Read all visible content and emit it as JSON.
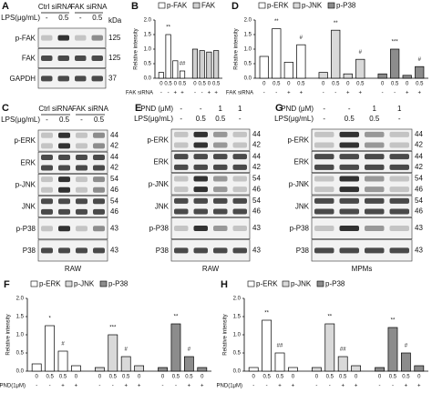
{
  "chart_data": [
    {
      "type": "bar",
      "label": "B",
      "ylabel": "Relative intensity",
      "ylim": [
        0,
        2
      ],
      "yticks": [
        {
          "value": 0,
          "label": "0.0"
        },
        0.5,
        {
          "value": 1,
          "label": "1.0"
        },
        1.5,
        {
          "value": 2,
          "label": "2.0"
        }
      ],
      "condition_labels": [
        "0",
        "0.5",
        "0",
        "0.5"
      ],
      "treatment": {
        "label": "FAK siRNA",
        "values": [
          "-",
          "-",
          "+",
          "+"
        ]
      },
      "series": [
        {
          "name": "p-FAK",
          "color": "#ffffff",
          "values": [
            0.2,
            1.5,
            0.6,
            0.25
          ],
          "annotations": [
            null,
            "**",
            null,
            "##"
          ]
        },
        {
          "name": "FAK",
          "color": "#d0d0d0",
          "values": [
            1.0,
            0.95,
            0.9,
            0.95
          ],
          "annotations": [
            null,
            null,
            null,
            null
          ]
        }
      ]
    },
    {
      "type": "bar",
      "label": "D",
      "ylabel": "Relative intensity",
      "ylim": [
        0,
        2
      ],
      "yticks": [
        {
          "value": 0,
          "label": "0.0"
        },
        0.5,
        {
          "value": 1,
          "label": "1.0"
        },
        1.5,
        {
          "value": 2,
          "label": "2.0"
        }
      ],
      "condition_labels": [
        "0",
        "0.5",
        "0",
        "0.5"
      ],
      "treatment": {
        "label": "FAK siRNA",
        "values": [
          "-",
          "-",
          "+",
          "+"
        ]
      },
      "series": [
        {
          "name": "p-ERK",
          "color": "#ffffff",
          "values": [
            0.75,
            1.7,
            0.55,
            1.15
          ],
          "annotations": [
            null,
            "**",
            null,
            "#"
          ]
        },
        {
          "name": "p-JNK",
          "color": "#d9d9d9",
          "values": [
            0.2,
            1.65,
            0.15,
            0.65
          ],
          "annotations": [
            null,
            "**",
            null,
            "#"
          ]
        },
        {
          "name": "p-P38",
          "color": "#8c8c8c",
          "values": [
            0.15,
            1.0,
            0.1,
            0.4
          ],
          "annotations": [
            null,
            "***",
            null,
            "#"
          ]
        }
      ]
    },
    {
      "type": "bar",
      "label": "F",
      "ylabel": "Relative intensity",
      "ylim": [
        0,
        2
      ],
      "yticks": [
        {
          "value": 0,
          "label": "0.0"
        },
        0.5,
        {
          "value": 1,
          "label": "1.0"
        },
        1.5,
        {
          "value": 2,
          "label": "2.0"
        }
      ],
      "condition_labels": [
        "0",
        "0.5",
        "0.5",
        "0"
      ],
      "treatment": {
        "label": "PND(1μM)",
        "values": [
          "-",
          "-",
          "+",
          "+"
        ]
      },
      "series": [
        {
          "name": "p-ERK",
          "color": "#ffffff",
          "values": [
            0.2,
            1.25,
            0.55,
            0.15
          ],
          "annotations": [
            null,
            "*",
            "#",
            null
          ]
        },
        {
          "name": "p-JNK",
          "color": "#d9d9d9",
          "values": [
            0.1,
            1.0,
            0.4,
            0.15
          ],
          "annotations": [
            null,
            "***",
            "#",
            null
          ]
        },
        {
          "name": "p-P38",
          "color": "#8c8c8c",
          "values": [
            0.1,
            1.3,
            0.4,
            0.1
          ],
          "annotations": [
            null,
            "**",
            "#",
            null
          ]
        }
      ]
    },
    {
      "type": "bar",
      "label": "H",
      "ylabel": "Relative intensity",
      "ylim": [
        0,
        2
      ],
      "yticks": [
        {
          "value": 0,
          "label": "0.0"
        },
        0.5,
        {
          "value": 1,
          "label": "1.0"
        },
        1.5,
        {
          "value": 2,
          "label": "2.0"
        }
      ],
      "condition_labels": [
        "0",
        "0.5",
        "0.5",
        "0"
      ],
      "treatment": {
        "label": "PND(1μM)",
        "values": [
          "-",
          "-",
          "+",
          "+"
        ]
      },
      "series": [
        {
          "name": "p-ERK",
          "color": "#ffffff",
          "values": [
            0.1,
            1.4,
            0.5,
            0.1
          ],
          "annotations": [
            null,
            "**",
            "##",
            null
          ]
        },
        {
          "name": "p-JNK",
          "color": "#d9d9d9",
          "values": [
            0.1,
            1.3,
            0.4,
            0.15
          ],
          "annotations": [
            null,
            "**",
            "##",
            null
          ]
        },
        {
          "name": "p-P38",
          "color": "#8c8c8c",
          "values": [
            0.1,
            1.2,
            0.5,
            0.15
          ],
          "annotations": [
            null,
            "**",
            "#",
            null
          ]
        }
      ]
    }
  ],
  "blots": [
    {
      "label": "A",
      "groups": [
        "Ctrl siRNA",
        "FAK siRNA"
      ],
      "kda_title": "kDa",
      "header_rows": [
        {
          "label": "LPS(μg/mL)",
          "values": [
            "-",
            "0.5",
            "-",
            "0.5"
          ]
        }
      ],
      "rows": [
        {
          "name": "p-FAK",
          "kda": [
            "125"
          ]
        },
        {
          "name": "FAK",
          "kda": [
            "125"
          ]
        },
        {
          "name": "GAPDH",
          "kda": [
            "37"
          ]
        }
      ]
    },
    {
      "label": "C",
      "groups": [
        "Ctrl siRNA",
        "FAK siRNA"
      ],
      "header_rows": [
        {
          "label": "LPS(μg/mL)",
          "values": [
            "-",
            "0.5",
            "-",
            "0.5"
          ]
        }
      ],
      "rows": [
        {
          "name": "p-ERK",
          "kda": [
            "44",
            "42"
          ]
        },
        {
          "name": "ERK",
          "kda": [
            "44",
            "42"
          ]
        },
        {
          "name": "p-JNK",
          "kda": [
            "54",
            "46"
          ]
        },
        {
          "name": "JNK",
          "kda": [
            "54",
            "46"
          ]
        },
        {
          "name": "p-P38",
          "kda": [
            "43"
          ]
        },
        {
          "name": "P38",
          "kda": [
            "43"
          ]
        }
      ],
      "footer": "RAW"
    },
    {
      "label": "E",
      "header_rows": [
        {
          "label": "PND (μM)",
          "values": [
            "-",
            "-",
            "1",
            "1"
          ]
        },
        {
          "label": "LPS(μg/mL)",
          "values": [
            "-",
            "0.5",
            "0.5",
            "-"
          ]
        }
      ],
      "rows": [
        {
          "name": "p-ERK",
          "kda": [
            "44",
            "42"
          ]
        },
        {
          "name": "ERK",
          "kda": [
            "44",
            "42"
          ]
        },
        {
          "name": "p-JNK",
          "kda": [
            "54",
            "46"
          ]
        },
        {
          "name": "JNK",
          "kda": [
            "54",
            "46"
          ]
        },
        {
          "name": "p-P38",
          "kda": [
            "43"
          ]
        },
        {
          "name": "P38",
          "kda": [
            "43"
          ]
        }
      ],
      "footer": "RAW"
    },
    {
      "label": "G",
      "header_rows": [
        {
          "label": "PND (μM)",
          "values": [
            "-",
            "-",
            "1",
            "1"
          ]
        },
        {
          "label": "LPS(μg/mL)",
          "values": [
            "-",
            "0.5",
            "0.5",
            "-"
          ]
        }
      ],
      "rows": [
        {
          "name": "p-ERK",
          "kda": [
            "44",
            "42"
          ]
        },
        {
          "name": "ERK",
          "kda": [
            "44",
            "42"
          ]
        },
        {
          "name": "p-JNK",
          "kda": [
            "54",
            "46"
          ]
        },
        {
          "name": "JNK",
          "kda": [
            "54",
            "46"
          ]
        },
        {
          "name": "p-P38",
          "kda": [
            "43"
          ]
        },
        {
          "name": "P38",
          "kda": [
            "43"
          ]
        }
      ],
      "footer": "MPMs"
    }
  ]
}
